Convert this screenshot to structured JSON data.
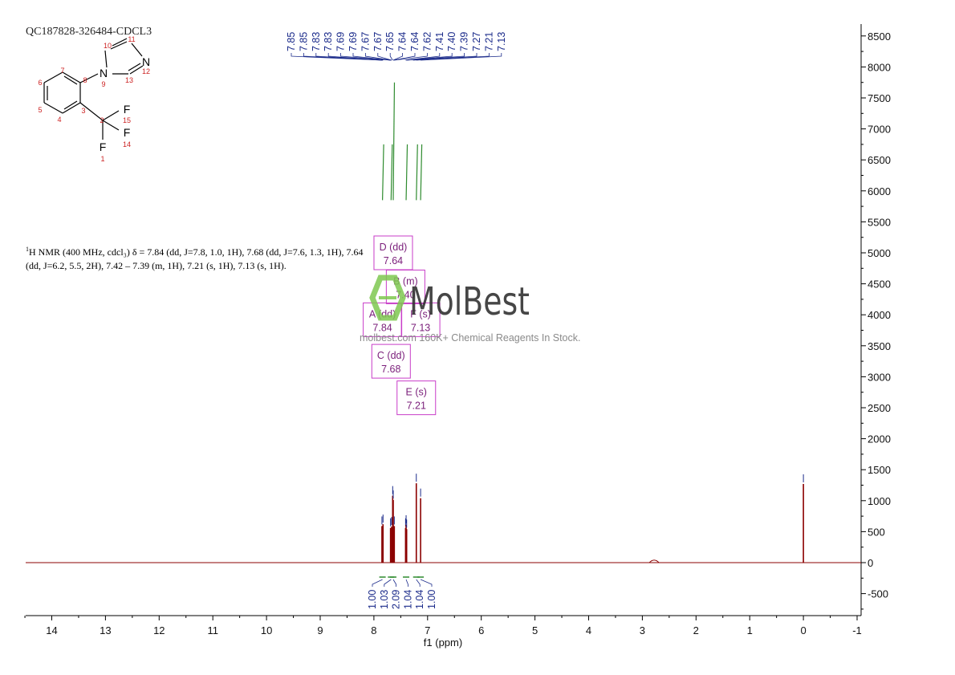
{
  "sample_title": "QC187828-326484-CDCL3",
  "nmr_description": {
    "prefix_sup": "1",
    "line1": "H NMR (400 MHz, cdcl₃) δ = 7.84 (dd, J=7.8, 1.0, 1H), 7.68 (dd, J=7.6, 1.3, 1H), 7.64",
    "line2": "(dd, J=6.2, 5.5, 2H), 7.42 – 7.39 (m, 1H), 7.21 (s, 1H), 7.13 (s, 1H)."
  },
  "watermark": {
    "brand": "MolBest",
    "tagline": "molbest.com 160K+ Chemical Reagents In Stock."
  },
  "structure_labels": {
    "atoms": [
      "N",
      "N",
      "F",
      "F",
      "F"
    ],
    "numbers": [
      "1",
      "2",
      "3",
      "4",
      "5",
      "6",
      "7",
      "8",
      "9",
      "10",
      "11",
      "12",
      "13",
      "14",
      "15"
    ]
  },
  "colors": {
    "spectrum": "#8b0000",
    "integral": "#2e8b2e",
    "peak_label": "#1a2a8a",
    "multiplet_box": "#c83cc8",
    "watermark": "#3a3a3a",
    "watermark_icon": "#7ec850"
  },
  "chart_data": {
    "type": "line",
    "title": "",
    "xlabel": "f1 (ppm)",
    "ylabel": "",
    "xlim": [
      14.5,
      -1
    ],
    "ylim": [
      -850,
      8650
    ],
    "x_axis_reversed": true,
    "x_ticks": [
      14,
      13,
      12,
      11,
      10,
      9,
      8,
      7,
      6,
      5,
      4,
      3,
      2,
      1,
      0,
      -1
    ],
    "y_ticks": [
      8500,
      8000,
      7500,
      7000,
      6500,
      6000,
      5500,
      5000,
      4500,
      4000,
      3500,
      3000,
      2500,
      2000,
      1500,
      1000,
      500,
      0,
      -500
    ],
    "y_axis_position": "right",
    "grid": false,
    "peak_labels": [
      "7.85",
      "7.85",
      "7.83",
      "7.83",
      "7.69",
      "7.69",
      "7.67",
      "7.67",
      "7.65",
      "7.64",
      "7.64",
      "7.62",
      "7.41",
      "7.40",
      "7.39",
      "7.27",
      "7.21",
      "7.13"
    ],
    "peak_label_ppm": [
      7.85,
      7.848,
      7.832,
      7.83,
      7.69,
      7.688,
      7.672,
      7.67,
      7.65,
      7.642,
      7.638,
      7.62,
      7.41,
      7.4,
      7.39,
      7.27,
      7.21,
      7.13
    ],
    "spectrum_peaks": [
      {
        "ppm": 7.85,
        "height": 590
      },
      {
        "ppm": 7.83,
        "height": 620
      },
      {
        "ppm": 7.69,
        "height": 560
      },
      {
        "ppm": 7.67,
        "height": 580
      },
      {
        "ppm": 7.65,
        "height": 1080
      },
      {
        "ppm": 7.64,
        "height": 1010
      },
      {
        "ppm": 7.62,
        "height": 590
      },
      {
        "ppm": 7.41,
        "height": 560
      },
      {
        "ppm": 7.4,
        "height": 610
      },
      {
        "ppm": 7.39,
        "height": 540
      },
      {
        "ppm": 7.21,
        "height": 1280
      },
      {
        "ppm": 7.13,
        "height": 1040
      },
      {
        "ppm": 2.78,
        "height": 40
      },
      {
        "ppm": 0.0,
        "height": 1270
      }
    ],
    "integral_traces": [
      {
        "ppm": 7.84,
        "y_bottom": 5850,
        "y_top": 6750
      },
      {
        "ppm": 7.68,
        "y_bottom": 5850,
        "y_top": 6750
      },
      {
        "ppm": 7.64,
        "y_bottom": 5850,
        "y_top": 7750
      },
      {
        "ppm": 7.4,
        "y_bottom": 5850,
        "y_top": 6750
      },
      {
        "ppm": 7.21,
        "y_bottom": 5850,
        "y_top": 6750
      },
      {
        "ppm": 7.13,
        "y_bottom": 5850,
        "y_top": 6750
      }
    ],
    "integrals": [
      {
        "ppm": 7.84,
        "value": "1.00"
      },
      {
        "ppm": 7.68,
        "value": "1.03"
      },
      {
        "ppm": 7.64,
        "value": "2.09"
      },
      {
        "ppm": 7.4,
        "value": "1.04"
      },
      {
        "ppm": 7.21,
        "value": "1.04"
      },
      {
        "ppm": 7.13,
        "value": "1.00"
      }
    ],
    "multiplets": [
      {
        "letter": "D",
        "mult": "dd",
        "ppm": "7.64",
        "anchor_ppm": 7.64,
        "y": 5000
      },
      {
        "letter": "B",
        "mult": "m",
        "ppm": "7.40",
        "anchor_ppm": 7.41,
        "y": 4450
      },
      {
        "letter": "A",
        "mult": "dd",
        "ppm": "7.84",
        "anchor_ppm": 7.84,
        "y": 3920
      },
      {
        "letter": "F",
        "mult": "s",
        "ppm": "7.13",
        "anchor_ppm": 7.13,
        "y": 3920
      },
      {
        "letter": "C",
        "mult": "dd",
        "ppm": "7.68",
        "anchor_ppm": 7.68,
        "y": 3250
      },
      {
        "letter": "E",
        "mult": "s",
        "ppm": "7.21",
        "anchor_ppm": 7.21,
        "y": 2660
      }
    ]
  }
}
